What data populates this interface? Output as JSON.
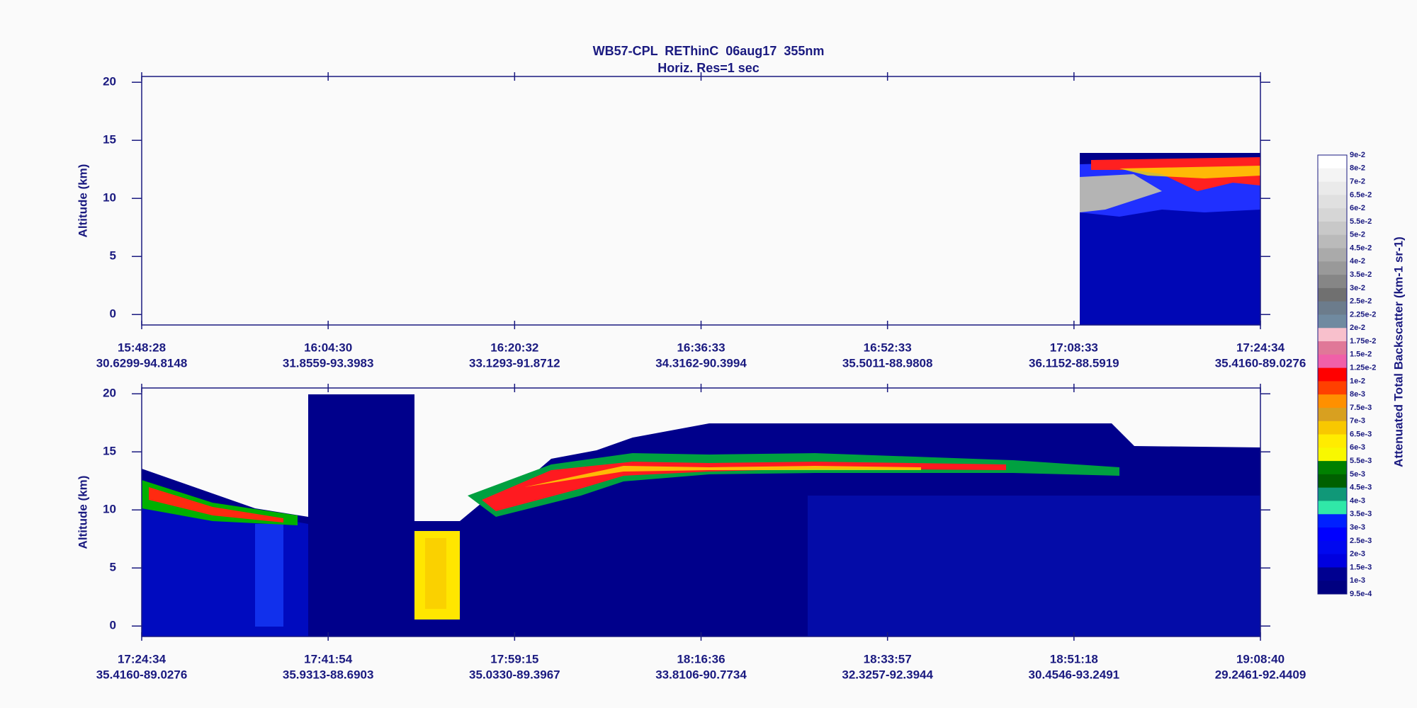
{
  "header": {
    "title": "WB57-CPL  REThinC  06aug17  355nm",
    "subtitle": "Horiz. Res=1 sec"
  },
  "panels": [
    {
      "ylabel": "Altitude (km)",
      "ylim": [
        -0.9,
        20.5
      ],
      "yticks": [
        0,
        5,
        10,
        15,
        20
      ],
      "xticks": [
        {
          "time": "15:48:28",
          "location": "30.6299-94.8148"
        },
        {
          "time": "16:04:30",
          "location": "31.8559-93.3983"
        },
        {
          "time": "16:20:32",
          "location": "33.1293-91.8712"
        },
        {
          "time": "16:36:33",
          "location": "34.3162-90.3994"
        },
        {
          "time": "16:52:33",
          "location": "35.5011-88.9808"
        },
        {
          "time": "17:08:33",
          "location": "36.1152-88.5919"
        },
        {
          "time": "17:24:34",
          "location": "35.4160-89.0276"
        }
      ]
    },
    {
      "ylabel": "Altitude (km)",
      "ylim": [
        -0.9,
        20.5
      ],
      "yticks": [
        0,
        5,
        10,
        15,
        20
      ],
      "xticks": [
        {
          "time": "17:24:34",
          "location": "35.4160-89.0276"
        },
        {
          "time": "17:41:54",
          "location": "35.9313-88.6903"
        },
        {
          "time": "17:59:15",
          "location": "35.0330-89.3967"
        },
        {
          "time": "18:16:36",
          "location": "33.8106-90.7734"
        },
        {
          "time": "18:33:57",
          "location": "32.3257-92.3944"
        },
        {
          "time": "18:51:18",
          "location": "30.4546-93.2491"
        },
        {
          "time": "19:08:40",
          "location": "29.2461-92.4409"
        }
      ]
    }
  ],
  "colorbar": {
    "label": "Attenuated Total Backscatter (km-1 sr-1)",
    "levels": [
      {
        "value": 0.09,
        "label": "9e-2"
      },
      {
        "value": 0.08,
        "label": "8e-2"
      },
      {
        "value": 0.07,
        "label": "7e-2"
      },
      {
        "value": 0.065,
        "label": "6.5e-2"
      },
      {
        "value": 0.06,
        "label": "6e-2"
      },
      {
        "value": 0.055,
        "label": "5.5e-2"
      },
      {
        "value": 0.05,
        "label": "5e-2"
      },
      {
        "value": 0.045,
        "label": "4.5e-2"
      },
      {
        "value": 0.04,
        "label": "4e-2"
      },
      {
        "value": 0.035,
        "label": "3.5e-2"
      },
      {
        "value": 0.03,
        "label": "3e-2"
      },
      {
        "value": 0.025,
        "label": "2.5e-2"
      },
      {
        "value": 0.0225,
        "label": "2.25e-2"
      },
      {
        "value": 0.02,
        "label": "2e-2"
      },
      {
        "value": 0.0175,
        "label": "1.75e-2"
      },
      {
        "value": 0.015,
        "label": "1.5e-2"
      },
      {
        "value": 0.0125,
        "label": "1.25e-2"
      },
      {
        "value": 0.01,
        "label": "1e-2"
      },
      {
        "value": 0.008,
        "label": "8e-3"
      },
      {
        "value": 0.0075,
        "label": "7.5e-3"
      },
      {
        "value": 0.007,
        "label": "7e-3"
      },
      {
        "value": 0.0065,
        "label": "6.5e-3"
      },
      {
        "value": 0.006,
        "label": "6e-3"
      },
      {
        "value": 0.0055,
        "label": "5.5e-3"
      },
      {
        "value": 0.005,
        "label": "5e-3"
      },
      {
        "value": 0.0045,
        "label": "4.5e-3"
      },
      {
        "value": 0.004,
        "label": "4e-3"
      },
      {
        "value": 0.0035,
        "label": "3.5e-3"
      },
      {
        "value": 0.003,
        "label": "3e-3"
      },
      {
        "value": 0.0025,
        "label": "2.5e-3"
      },
      {
        "value": 0.002,
        "label": "2e-3"
      },
      {
        "value": 0.0015,
        "label": "1.5e-3"
      },
      {
        "value": 0.001,
        "label": "1e-3"
      },
      {
        "value": 0.00095,
        "label": "9.5e-4"
      }
    ],
    "colors": [
      "#ffffff",
      "#f4f4f4",
      "#eaeaea",
      "#e0e0e0",
      "#d6d6d6",
      "#c8c8c8",
      "#bababa",
      "#aaaaaa",
      "#999999",
      "#868686",
      "#707070",
      "#6c7c8c",
      "#708aa0",
      "#f8c0cc",
      "#e07898",
      "#f060a8",
      "#ff0000",
      "#ff4000",
      "#ff9000",
      "#d8a020",
      "#f8c800",
      "#ffec00",
      "#f8f800",
      "#008000",
      "#006000",
      "#109878",
      "#30e8a8",
      "#0020ff",
      "#0000ff",
      "#0008f0",
      "#0000e0",
      "#000090",
      "#000080"
    ]
  }
}
